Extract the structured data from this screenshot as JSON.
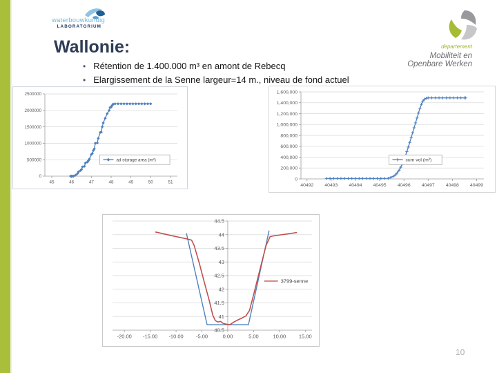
{
  "slide": {
    "page_number": "10"
  },
  "logos": {
    "left": {
      "line1": "waterbouwkundig",
      "line2": "LABORATORIUM"
    },
    "right": {
      "dept": "departement",
      "line1": "Mobiliteit en",
      "line2": "Openbare Werken"
    }
  },
  "title": "Wallonie:",
  "bullets": [
    "Rétention de 1.400.000 m³ en amont de Rebecq",
    "Elargissement de la Senne largeur=14 m., niveau de fond actuel"
  ],
  "colors": {
    "accent_green": "#a9bf3b",
    "title_navy": "#2e3c55",
    "series_blue": "#4f81bd",
    "series_red": "#c0504d"
  },
  "chart_data": [
    {
      "type": "line",
      "title": "",
      "xlabel": "",
      "ylabel": "",
      "xlim": [
        44.65,
        51.35
      ],
      "ylim": [
        0,
        2500000
      ],
      "xticks": {
        "values": [
          45,
          46,
          47,
          48,
          49,
          50,
          51
        ],
        "labels": [
          "45",
          "46",
          "47",
          "48",
          "49",
          "50",
          "51"
        ]
      },
      "yticks": {
        "values": [
          0,
          500000,
          1000000,
          1500000,
          2000000,
          2500000
        ],
        "labels": [
          "0",
          "500000",
          "1000000",
          "1500000",
          "2000000",
          "2500000"
        ]
      },
      "legend": {
        "label": "ad storage area (m²)",
        "series": 0
      },
      "series": [
        {
          "name": "ad storage area (m²)",
          "color": "#4f81bd",
          "marker": "diamond",
          "width": 1.3,
          "points": [
            [
              45.95,
              0
            ],
            [
              46.0,
              0
            ],
            [
              46.05,
              0
            ],
            [
              46.1,
              0
            ],
            [
              46.2,
              30000
            ],
            [
              46.3,
              80000
            ],
            [
              46.35,
              130000
            ],
            [
              46.45,
              170000
            ],
            [
              46.5,
              200000
            ],
            [
              46.55,
              280000
            ],
            [
              46.65,
              300000
            ],
            [
              46.7,
              400000
            ],
            [
              46.8,
              430000
            ],
            [
              46.85,
              470000
            ],
            [
              46.9,
              520000
            ],
            [
              47.0,
              660000
            ],
            [
              47.05,
              690000
            ],
            [
              47.1,
              780000
            ],
            [
              47.15,
              830000
            ],
            [
              47.2,
              1000000
            ],
            [
              47.3,
              1010000
            ],
            [
              47.35,
              1150000
            ],
            [
              47.45,
              1330000
            ],
            [
              47.5,
              1340000
            ],
            [
              47.55,
              1500000
            ],
            [
              47.6,
              1620000
            ],
            [
              47.7,
              1760000
            ],
            [
              47.8,
              1900000
            ],
            [
              47.9,
              2000000
            ],
            [
              47.95,
              2090000
            ],
            [
              48.0,
              2100000
            ],
            [
              48.05,
              2150000
            ],
            [
              48.1,
              2190000
            ],
            [
              48.2,
              2200000
            ],
            [
              48.35,
              2200000
            ],
            [
              48.5,
              2200000
            ],
            [
              48.65,
              2200000
            ],
            [
              48.8,
              2200000
            ],
            [
              48.95,
              2200000
            ],
            [
              49.1,
              2200000
            ],
            [
              49.25,
              2200000
            ],
            [
              49.4,
              2200000
            ],
            [
              49.55,
              2200000
            ],
            [
              49.7,
              2200000
            ],
            [
              49.85,
              2200000
            ],
            [
              50.0,
              2200000
            ]
          ]
        }
      ]
    },
    {
      "type": "line",
      "title": "",
      "xlabel": "",
      "ylabel": "",
      "xlim": [
        40491.75,
        40499.3
      ],
      "ylim": [
        0,
        1600000
      ],
      "xticks": {
        "values": [
          40492,
          40493,
          40494,
          40495,
          40496,
          40497,
          40498,
          40499
        ],
        "labels": [
          "40492",
          "40493",
          "40494",
          "40495",
          "40496",
          "40497",
          "40498",
          "40499"
        ]
      },
      "yticks": {
        "values": [
          0,
          200000,
          400000,
          600000,
          800000,
          1000000,
          1200000,
          1400000,
          1600000
        ],
        "labels": [
          "0",
          "200,000",
          "400,000",
          "600,000",
          "800,000",
          "1,000,000",
          "1,200,000",
          "1,400,000",
          "1,600,000"
        ]
      },
      "legend": {
        "label": "cum vol (m³)",
        "series": 0
      },
      "series": [
        {
          "name": "cum vol (m³)",
          "color": "#4f81bd",
          "marker": "plus",
          "width": 1.3,
          "points": [
            [
              40492.8,
              8000
            ],
            [
              40492.95,
              8000
            ],
            [
              40493.1,
              8000
            ],
            [
              40493.25,
              8000
            ],
            [
              40493.4,
              8000
            ],
            [
              40493.55,
              8000
            ],
            [
              40493.7,
              8000
            ],
            [
              40493.85,
              8000
            ],
            [
              40494.0,
              8000
            ],
            [
              40494.15,
              8000
            ],
            [
              40494.3,
              8000
            ],
            [
              40494.45,
              8000
            ],
            [
              40494.6,
              8000
            ],
            [
              40494.75,
              8000
            ],
            [
              40494.9,
              8000
            ],
            [
              40495.05,
              8000
            ],
            [
              40495.2,
              8000
            ],
            [
              40495.35,
              10000
            ],
            [
              40495.45,
              25000
            ],
            [
              40495.55,
              45000
            ],
            [
              40495.65,
              75000
            ],
            [
              40495.72,
              110000
            ],
            [
              40495.8,
              160000
            ],
            [
              40495.87,
              215000
            ],
            [
              40495.93,
              275000
            ],
            [
              40496.0,
              345000
            ],
            [
              40496.06,
              420000
            ],
            [
              40496.12,
              500000
            ],
            [
              40496.18,
              585000
            ],
            [
              40496.24,
              670000
            ],
            [
              40496.3,
              760000
            ],
            [
              40496.36,
              850000
            ],
            [
              40496.42,
              940000
            ],
            [
              40496.48,
              1030000
            ],
            [
              40496.54,
              1120000
            ],
            [
              40496.6,
              1210000
            ],
            [
              40496.66,
              1295000
            ],
            [
              40496.72,
              1370000
            ],
            [
              40496.78,
              1430000
            ],
            [
              40496.85,
              1465000
            ],
            [
              40496.92,
              1482000
            ],
            [
              40497.0,
              1490000
            ],
            [
              40497.15,
              1490000
            ],
            [
              40497.3,
              1490000
            ],
            [
              40497.45,
              1490000
            ],
            [
              40497.6,
              1490000
            ],
            [
              40497.75,
              1490000
            ],
            [
              40497.9,
              1490000
            ],
            [
              40498.05,
              1490000
            ],
            [
              40498.2,
              1490000
            ],
            [
              40498.35,
              1490000
            ],
            [
              40498.5,
              1490000
            ],
            [
              40498.55,
              1490000
            ]
          ]
        }
      ]
    },
    {
      "type": "line",
      "title": "",
      "xlabel": "",
      "ylabel": "",
      "xlim": [
        -22.3,
        16.3
      ],
      "ylim": [
        40.5,
        44.5
      ],
      "y_axis_at_x": 0,
      "xticks": {
        "values": [
          -20,
          -15,
          -10,
          -5,
          0,
          5,
          10,
          15
        ],
        "labels": [
          "-20.00",
          "-15.00",
          "-10.00",
          "-5.00",
          "0.00",
          "5.00",
          "10.00",
          "15.00"
        ]
      },
      "yticks": {
        "values": [
          40.5,
          41,
          41.5,
          42,
          42.5,
          43,
          43.5,
          44,
          44.5
        ],
        "labels": [
          "40.5",
          "41",
          "41.5",
          "42",
          "42.5",
          "43",
          "43.5",
          "44",
          "44.5"
        ]
      },
      "legend": {
        "label": "3799-senne",
        "series": 1
      },
      "series": [
        {
          "name": "",
          "color": "#4f81bd",
          "marker": "none",
          "width": 1.4,
          "points": [
            [
              -8,
              44.05
            ],
            [
              -4,
              40.7
            ],
            [
              4,
              40.7
            ],
            [
              8,
              44.15
            ]
          ]
        },
        {
          "name": "3799-senne",
          "color": "#c0504d",
          "marker": "none",
          "width": 1.6,
          "points": [
            [
              -14,
              44.1
            ],
            [
              -11,
              43.97
            ],
            [
              -8,
              43.85
            ],
            [
              -7,
              43.8
            ],
            [
              -6.5,
              43.6
            ],
            [
              -5.5,
              42.95
            ],
            [
              -4.6,
              42.3
            ],
            [
              -3.6,
              41.6
            ],
            [
              -2.9,
              41.05
            ],
            [
              -2.4,
              40.85
            ],
            [
              -1.9,
              40.8
            ],
            [
              -1.4,
              40.82
            ],
            [
              -0.9,
              40.75
            ],
            [
              -0.3,
              40.72
            ],
            [
              0.4,
              40.7
            ],
            [
              1.2,
              40.8
            ],
            [
              2.0,
              40.88
            ],
            [
              2.8,
              40.95
            ],
            [
              3.5,
              41.02
            ],
            [
              4.2,
              41.22
            ],
            [
              5.0,
              41.8
            ],
            [
              5.8,
              42.4
            ],
            [
              6.6,
              43.0
            ],
            [
              7.4,
              43.6
            ],
            [
              8.2,
              43.93
            ],
            [
              9.0,
              43.96
            ],
            [
              10.5,
              44.0
            ],
            [
              12.0,
              44.04
            ],
            [
              13.4,
              44.08
            ]
          ]
        }
      ]
    }
  ]
}
